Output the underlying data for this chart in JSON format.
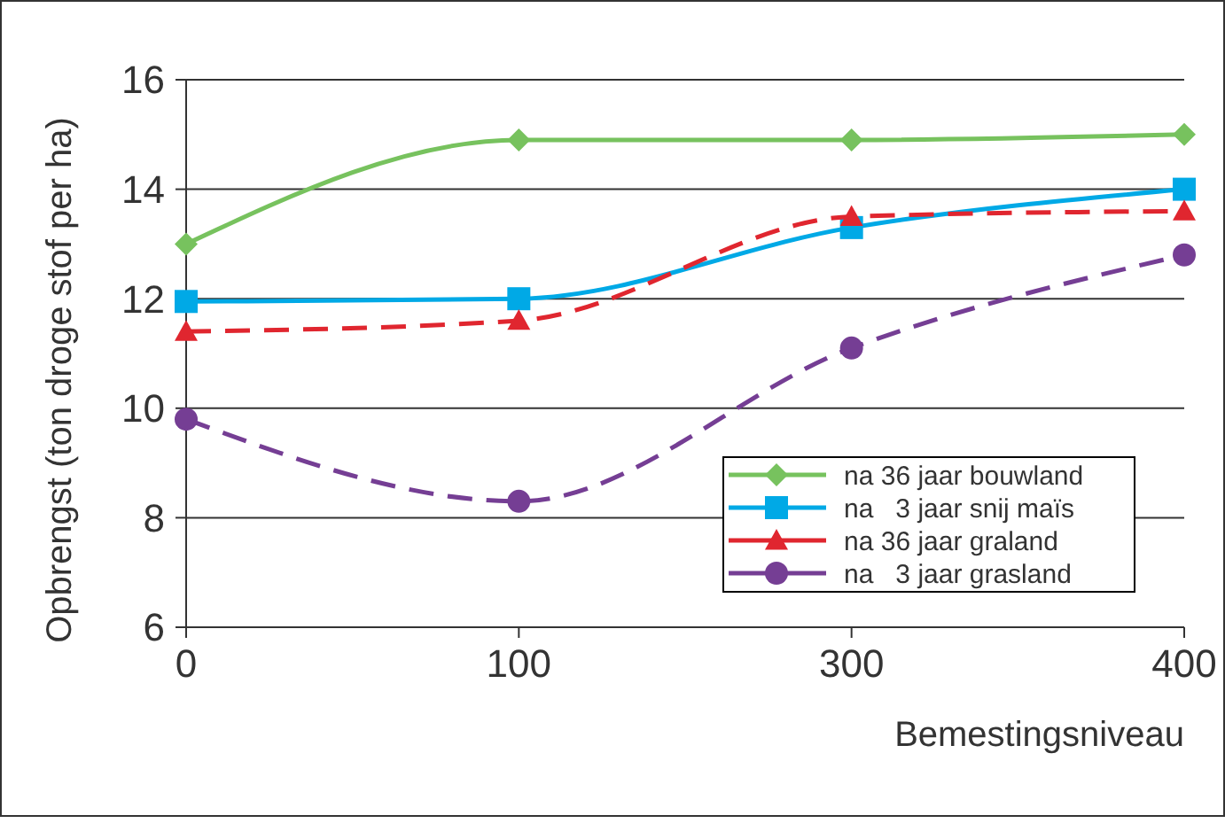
{
  "chart_data": {
    "type": "line",
    "xlabel": "Bemestingsniveau",
    "ylabel": "Opbrengst (ton droge stof per ha)",
    "categories": [
      "0",
      "100",
      "300",
      "400"
    ],
    "ylim": [
      6,
      16
    ],
    "yticks": [
      6,
      8,
      10,
      12,
      14,
      16
    ],
    "grid": "y",
    "legend": "bottom right",
    "series": [
      {
        "name": "na 36 jaar bouwland",
        "color": "#77c25e",
        "values": [
          13.0,
          14.9,
          14.9,
          15.0
        ],
        "marker": "diamond",
        "line_style": "solid"
      },
      {
        "name": "na   3 jaar snij maïs",
        "color": "#00a9e6",
        "values": [
          11.95,
          12.0,
          13.3,
          14.0
        ],
        "marker": "square",
        "line_style": "solid"
      },
      {
        "name": "na 36 jaar graland",
        "color": "#e0262f",
        "values": [
          11.4,
          11.6,
          13.5,
          13.6
        ],
        "marker": "triangle",
        "line_style": "dashed"
      },
      {
        "name": "na   3 jaar grasland",
        "color": "#753e94",
        "values": [
          9.8,
          8.3,
          11.1,
          12.8
        ],
        "marker": "circle",
        "line_style": "dashed"
      }
    ]
  }
}
